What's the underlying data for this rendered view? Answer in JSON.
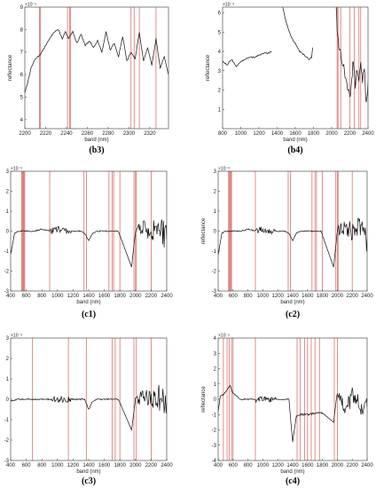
{
  "chart_data": [
    {
      "id": "b3",
      "type": "line",
      "caption": "(b3)",
      "xlabel": "band (nm)",
      "ylabel": "reflectance",
      "exponent": "×10⁻⁵",
      "xlim": [
        2200,
        2338
      ],
      "ylim": [
        3.6,
        9.0
      ],
      "xticks": [
        2200,
        2220,
        2240,
        2260,
        2280,
        2300,
        2320
      ],
      "yticks": [
        4,
        5,
        6,
        7,
        8,
        9
      ],
      "red_lines": [
        2214,
        2215,
        2241,
        2243,
        2244,
        2302,
        2305,
        2310,
        2326
      ],
      "series": [
        {
          "points": [
            [
              2200,
              5.2
            ],
            [
              2203,
              5.7
            ],
            [
              2206,
              6.3
            ],
            [
              2210,
              6.7
            ],
            [
              2215,
              6.9
            ],
            [
              2220,
              7.3
            ],
            [
              2224,
              7.6
            ],
            [
              2228,
              7.9
            ],
            [
              2232,
              8.0
            ],
            [
              2236,
              7.6
            ],
            [
              2239,
              7.9
            ],
            [
              2242,
              7.6
            ],
            [
              2246,
              7.9
            ],
            [
              2250,
              7.4
            ],
            [
              2254,
              7.8
            ],
            [
              2258,
              7.3
            ],
            [
              2262,
              7.5
            ],
            [
              2266,
              7.2
            ],
            [
              2270,
              7.5
            ],
            [
              2274,
              7.0
            ],
            [
              2278,
              7.9
            ],
            [
              2282,
              7.1
            ],
            [
              2286,
              7.4
            ],
            [
              2290,
              6.8
            ],
            [
              2294,
              7.7
            ],
            [
              2298,
              6.6
            ],
            [
              2302,
              7.0
            ],
            [
              2306,
              6.7
            ],
            [
              2310,
              7.9
            ],
            [
              2314,
              6.6
            ],
            [
              2318,
              7.2
            ],
            [
              2322,
              6.4
            ],
            [
              2326,
              7.6
            ],
            [
              2330,
              6.3
            ],
            [
              2334,
              6.8
            ],
            [
              2338,
              6.0
            ]
          ]
        }
      ]
    },
    {
      "id": "b4",
      "type": "line",
      "caption": "(b4)",
      "xlabel": "band (nm)",
      "ylabel": "reflectance",
      "exponent": "×10⁻³",
      "xlim": [
        800,
        2400
      ],
      "ylim": [
        0.0,
        6.3
      ],
      "xticks": [
        800,
        1000,
        1200,
        1400,
        1600,
        1800,
        2000,
        2200,
        2400
      ],
      "yticks": [
        1,
        2,
        3,
        4,
        5,
        6
      ],
      "red_lines": [
        2060,
        2070,
        2100,
        2200,
        2250,
        2300,
        2320
      ],
      "series": [
        {
          "points": [
            [
              800,
              3.5
            ],
            [
              850,
              3.3
            ],
            [
              900,
              3.6
            ],
            [
              950,
              3.2
            ],
            [
              1000,
              3.5
            ],
            [
              1050,
              3.6
            ],
            [
              1100,
              3.7
            ],
            [
              1150,
              3.7
            ],
            [
              1200,
              3.8
            ],
            [
              1250,
              3.9
            ],
            [
              1300,
              3.9
            ],
            [
              1340,
              4.0
            ]
          ]
        },
        {
          "points": [
            [
              1460,
              6.3
            ],
            [
              1500,
              5.5
            ],
            [
              1550,
              4.8
            ],
            [
              1600,
              4.4
            ],
            [
              1650,
              4.0
            ],
            [
              1700,
              3.8
            ],
            [
              1750,
              3.6
            ],
            [
              1780,
              3.7
            ],
            [
              1790,
              4.2
            ]
          ]
        },
        {
          "points": [
            [
              2050,
              6.3
            ],
            [
              2060,
              5.0
            ],
            [
              2080,
              4.2
            ],
            [
              2100,
              3.8
            ],
            [
              2120,
              3.5
            ],
            [
              2140,
              3.0
            ],
            [
              2160,
              2.5
            ],
            [
              2180,
              2.0
            ],
            [
              2200,
              1.6
            ],
            [
              2220,
              2.5
            ],
            [
              2240,
              3.6
            ],
            [
              2260,
              2.2
            ],
            [
              2280,
              3.2
            ],
            [
              2300,
              2.4
            ],
            [
              2320,
              3.4
            ],
            [
              2340,
              2.6
            ],
            [
              2360,
              3.0
            ],
            [
              2380,
              1.2
            ],
            [
              2400,
              2.4
            ]
          ]
        }
      ]
    },
    {
      "id": "c1",
      "type": "line",
      "caption": "(c1)",
      "xlabel": "band (nm)",
      "ylabel": "reflectance",
      "exponent": "×10⁻³",
      "xlim": [
        400,
        2400
      ],
      "ylim": [
        -3,
        3
      ],
      "xticks": [
        400,
        600,
        800,
        1000,
        1200,
        1400,
        1600,
        1800,
        2000,
        2200,
        2400
      ],
      "yticks": [
        -3,
        -2,
        -1,
        0,
        1,
        2,
        3
      ],
      "red_lines": [
        540,
        550,
        560,
        570,
        580,
        900,
        1340,
        1370,
        1660,
        1700,
        1720,
        1800,
        1980,
        2000,
        2010,
        2200
      ],
      "series": [
        {
          "points": [
            [
              400,
              -1.2
            ],
            [
              450,
              -0.1
            ],
            [
              500,
              0.0
            ],
            [
              600,
              0.0
            ],
            [
              700,
              0.0
            ],
            [
              800,
              0.1
            ],
            [
              900,
              0.0
            ],
            [
              1000,
              0.1
            ],
            [
              1100,
              0.0
            ],
            [
              1200,
              0.0
            ],
            [
              1300,
              0.0
            ],
            [
              1350,
              -0.1
            ],
            [
              1400,
              -0.5
            ],
            [
              1450,
              -0.1
            ],
            [
              1500,
              0.0
            ],
            [
              1600,
              0.0
            ],
            [
              1700,
              0.0
            ],
            [
              1780,
              0.0
            ],
            [
              1950,
              -1.8
            ],
            [
              2000,
              0.0
            ],
            [
              2100,
              0.2
            ],
            [
              2200,
              0.0
            ],
            [
              2300,
              0.2
            ],
            [
              2400,
              -0.4
            ]
          ]
        }
      ]
    },
    {
      "id": "c2",
      "type": "line",
      "caption": "(c2)",
      "xlabel": "band (nm)",
      "ylabel": "reflectance",
      "exponent": "×10⁻³",
      "xlim": [
        400,
        2400
      ],
      "ylim": [
        -3,
        3
      ],
      "xticks": [
        400,
        600,
        800,
        1000,
        1200,
        1400,
        1600,
        1800,
        2000,
        2200,
        2400
      ],
      "yticks": [
        -3,
        -2,
        -1,
        0,
        1,
        2,
        3
      ],
      "red_lines": [
        540,
        550,
        560,
        570,
        580,
        900,
        1340,
        1370,
        1660,
        1700,
        1720,
        1800,
        1980,
        2000,
        2010,
        2200
      ],
      "series": [
        {
          "points": [
            [
              400,
              -1.2
            ],
            [
              450,
              -0.1
            ],
            [
              500,
              0.0
            ],
            [
              600,
              0.0
            ],
            [
              700,
              0.0
            ],
            [
              800,
              0.1
            ],
            [
              900,
              0.0
            ],
            [
              1000,
              0.1
            ],
            [
              1100,
              0.0
            ],
            [
              1200,
              0.0
            ],
            [
              1300,
              0.0
            ],
            [
              1350,
              -0.1
            ],
            [
              1400,
              -0.5
            ],
            [
              1450,
              -0.1
            ],
            [
              1500,
              0.0
            ],
            [
              1600,
              0.0
            ],
            [
              1700,
              0.0
            ],
            [
              1780,
              0.0
            ],
            [
              1950,
              -1.8
            ],
            [
              2000,
              0.0
            ],
            [
              2100,
              0.2
            ],
            [
              2200,
              0.0
            ],
            [
              2300,
              0.2
            ],
            [
              2400,
              -0.4
            ]
          ]
        }
      ]
    },
    {
      "id": "c3",
      "type": "line",
      "caption": "(c3)",
      "xlabel": "band (nm)",
      "ylabel": "reflectance",
      "exponent": "×10⁻³",
      "xlim": [
        400,
        2400
      ],
      "ylim": [
        -3,
        3
      ],
      "xticks": [
        400,
        600,
        800,
        1000,
        1200,
        1400,
        1600,
        1800,
        2000,
        2200,
        2400
      ],
      "yticks": [
        -3,
        -2,
        -1,
        0,
        1,
        2,
        3
      ],
      "red_lines": [
        680,
        1140,
        1370,
        1700,
        1740,
        1800,
        1980,
        2010,
        2200
      ],
      "series": [
        {
          "points": [
            [
              400,
              -0.1
            ],
            [
              500,
              0.0
            ],
            [
              600,
              0.0
            ],
            [
              700,
              0.0
            ],
            [
              800,
              0.0
            ],
            [
              900,
              0.0
            ],
            [
              1000,
              0.0
            ],
            [
              1100,
              0.0
            ],
            [
              1200,
              0.0
            ],
            [
              1300,
              0.0
            ],
            [
              1350,
              0.0
            ],
            [
              1400,
              -0.5
            ],
            [
              1450,
              -0.1
            ],
            [
              1500,
              0.0
            ],
            [
              1600,
              0.0
            ],
            [
              1700,
              0.0
            ],
            [
              1780,
              0.0
            ],
            [
              1950,
              -1.5
            ],
            [
              2000,
              0.0
            ],
            [
              2100,
              0.1
            ],
            [
              2200,
              0.0
            ],
            [
              2300,
              0.1
            ],
            [
              2400,
              -0.2
            ]
          ]
        }
      ]
    },
    {
      "id": "c4",
      "type": "line",
      "caption": "(c4)",
      "xlabel": "band (nm)",
      "ylabel": "reflectance",
      "exponent": "×10⁻⁵",
      "xlim": [
        400,
        2400
      ],
      "ylim": [
        -4,
        4
      ],
      "xticks": [
        400,
        600,
        800,
        1000,
        1200,
        1400,
        1600,
        1800,
        2000,
        2200,
        2400
      ],
      "yticks": [
        -4,
        -3,
        -2,
        -1,
        0,
        1,
        2,
        3,
        4
      ],
      "red_lines": [
        470,
        520,
        550,
        580,
        600,
        900,
        1460,
        1500,
        1560,
        1600,
        1650,
        1700,
        1760,
        1960,
        2000
      ],
      "series": [
        {
          "points": [
            [
              400,
              -0.8
            ],
            [
              430,
              0.2
            ],
            [
              470,
              0.3
            ],
            [
              520,
              0.6
            ],
            [
              560,
              0.9
            ],
            [
              600,
              0.4
            ],
            [
              700,
              0.0
            ],
            [
              800,
              0.0
            ],
            [
              900,
              0.0
            ],
            [
              1000,
              0.1
            ],
            [
              1100,
              0.0
            ],
            [
              1200,
              0.0
            ],
            [
              1300,
              0.0
            ],
            [
              1350,
              0.0
            ],
            [
              1400,
              -2.8
            ],
            [
              1450,
              -1.1
            ],
            [
              1500,
              -1.0
            ],
            [
              1600,
              -1.0
            ],
            [
              1700,
              -0.9
            ],
            [
              1800,
              -0.9
            ],
            [
              1950,
              -1.5
            ],
            [
              2000,
              0.5
            ],
            [
              2100,
              -0.6
            ],
            [
              2200,
              0.2
            ],
            [
              2300,
              -0.3
            ],
            [
              2400,
              -0.5
            ]
          ]
        }
      ]
    }
  ]
}
